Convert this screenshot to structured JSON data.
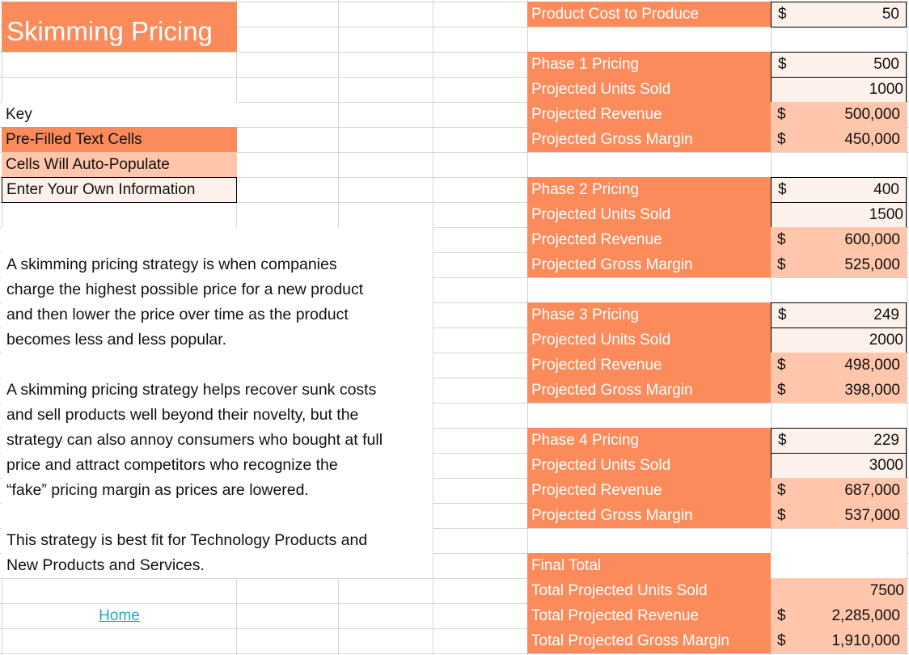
{
  "title": "Skimming Pricing",
  "key": {
    "heading": "Key",
    "items": [
      {
        "label": "Pre-Filled Text Cells",
        "style": "orange",
        "color": "#fc8b5c"
      },
      {
        "label": "Cells Will Auto-Populate",
        "style": "peach",
        "color": "#ffc6ab"
      },
      {
        "label": "Enter Your Own Information",
        "style": "input",
        "color": "#fdf1ec"
      }
    ]
  },
  "description": {
    "paragraph1": [
      "A skimming pricing strategy is when companies",
      "charge the highest possible price for a new product",
      "and then lower the price over time as the product",
      "becomes less and less popular."
    ],
    "paragraph2": [
      "A skimming pricing strategy helps recover sunk costs",
      "and sell products well beyond their novelty, but the",
      "strategy can also annoy consumers who bought at full",
      "price and attract competitors who recognize the",
      "“fake” pricing margin as prices are lowered."
    ],
    "paragraph3": [
      "This strategy is best fit for Technology Products and",
      "New Products and Services."
    ]
  },
  "home_link": "Home",
  "currency_symbol": "$",
  "product_cost": {
    "label": "Product Cost to Produce",
    "value": "50"
  },
  "phases": [
    {
      "pricing_label": "Phase 1 Pricing",
      "price": "500",
      "units_label": "Projected Units Sold",
      "units": "1000",
      "revenue_label": "Projected Revenue",
      "revenue": "500,000",
      "margin_label": "Projected Gross Margin",
      "margin": "450,000"
    },
    {
      "pricing_label": "Phase 2 Pricing",
      "price": "400",
      "units_label": "Projected Units Sold",
      "units": "1500",
      "revenue_label": "Projected Revenue",
      "revenue": "600,000",
      "margin_label": "Projected Gross Margin",
      "margin": "525,000"
    },
    {
      "pricing_label": "Phase 3 Pricing",
      "price": "249",
      "units_label": "Projected Units Sold",
      "units": "2000",
      "revenue_label": "Projected Revenue",
      "revenue": "498,000",
      "margin_label": "Projected Gross Margin",
      "margin": "398,000"
    },
    {
      "pricing_label": "Phase 4 Pricing",
      "price": "229",
      "units_label": "Projected Units Sold",
      "units": "3000",
      "revenue_label": "Projected Revenue",
      "revenue": "687,000",
      "margin_label": "Projected Gross Margin",
      "margin": "537,000"
    }
  ],
  "final_total": {
    "heading": "Final Total",
    "units_label": "Total Projected Units Sold",
    "units": "7500",
    "revenue_label": "Total Projected Revenue",
    "revenue": "2,285,000",
    "margin_label": "Total Projected Gross Margin",
    "margin": "1,910,000"
  },
  "colors": {
    "orange": "#fc8b5c",
    "peach": "#ffc6ab",
    "input": "#fdf1ec",
    "link": "#2aa6c4",
    "grid": "#d4d4d4"
  }
}
